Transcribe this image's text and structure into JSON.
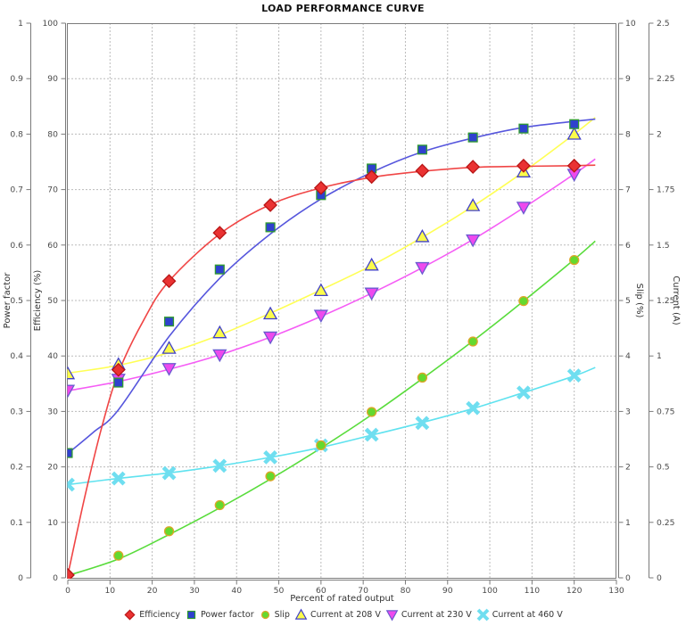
{
  "title": "LOAD PERFORMANCE CURVE",
  "chart_data": {
    "type": "scatter",
    "title": "LOAD PERFORMANCE CURVE",
    "grid": true,
    "legend_position": "bottom",
    "x_axis": {
      "label": "Percent of rated output",
      "min": 0,
      "max": 130,
      "ticks": [
        "0",
        "10",
        "20",
        "30",
        "40",
        "50",
        "60",
        "70",
        "80",
        "90",
        "100",
        "110",
        "120",
        "130"
      ]
    },
    "y_axes": [
      {
        "id": "power_factor",
        "label": "Power factor",
        "side": "left-outer",
        "min": 0,
        "max": 1,
        "ticks": [
          "0",
          "0.1",
          "0.2",
          "0.3",
          "0.4",
          "0.5",
          "0.6",
          "0.7",
          "0.8",
          "0.9",
          "1"
        ]
      },
      {
        "id": "efficiency",
        "label": "Efficiency (%)",
        "side": "left-inner",
        "min": 0,
        "max": 100,
        "ticks": [
          "0",
          "10",
          "20",
          "30",
          "40",
          "50",
          "60",
          "70",
          "80",
          "90",
          "100"
        ]
      },
      {
        "id": "slip",
        "label": "Slip (%)",
        "side": "right-inner",
        "min": 0,
        "max": 10,
        "ticks": [
          "0",
          "1",
          "2",
          "3",
          "4",
          "5",
          "6",
          "7",
          "8",
          "9",
          "10"
        ]
      },
      {
        "id": "current",
        "label": "Current (A)",
        "side": "right-outer",
        "min": 0,
        "max": 2.5,
        "ticks": [
          "0",
          "0.25",
          "0.5",
          "0.75",
          "1",
          "1.25",
          "1.5",
          "1.75",
          "2",
          "2.25",
          "2.5"
        ]
      }
    ],
    "x": [
      0,
      12,
      24,
      36,
      48,
      60,
      72,
      84,
      96,
      108,
      120
    ],
    "series": [
      {
        "name": "Efficiency",
        "axis": "efficiency",
        "marker": "diamond",
        "line_color": "#f04545",
        "fill": "#ea3232",
        "stroke": "#b81515",
        "values": [
          0.5,
          37.5,
          53.5,
          62.2,
          67.2,
          70.3,
          72.3,
          73.4,
          74.1,
          74.3,
          74.3
        ],
        "fit_x": [
          0,
          4,
          8,
          12,
          18,
          24,
          36,
          48,
          60,
          72,
          84,
          96,
          108,
          120,
          125
        ],
        "fit_y": [
          0.5,
          14.5,
          27,
          37,
          46.5,
          53.5,
          62,
          67.3,
          70.3,
          72.2,
          73.3,
          74,
          74.2,
          74.3,
          74.4
        ]
      },
      {
        "name": "Power factor",
        "axis": "power_factor",
        "marker": "square",
        "line_color": "#5656dd",
        "fill": "#2f41ce",
        "stroke": "#2f9b2f",
        "values": [
          0.225,
          0.352,
          0.462,
          0.556,
          0.632,
          0.69,
          0.738,
          0.772,
          0.794,
          0.81,
          0.818
        ],
        "fit_x": [
          0,
          6,
          12,
          24,
          36,
          48,
          60,
          72,
          84,
          96,
          108,
          120,
          125
        ],
        "fit_y": [
          0.224,
          0.262,
          0.303,
          0.435,
          0.54,
          0.62,
          0.683,
          0.731,
          0.768,
          0.793,
          0.812,
          0.823,
          0.827
        ]
      },
      {
        "name": "Slip",
        "axis": "slip",
        "marker": "circle",
        "line_color": "#59dc3c",
        "fill": "#64d92e",
        "stroke": "#dfa428",
        "values": [
          0.05,
          0.4,
          0.84,
          1.31,
          1.83,
          2.39,
          2.99,
          3.61,
          4.26,
          4.99,
          5.73
        ],
        "fit_x": [
          0,
          12,
          24,
          36,
          48,
          60,
          72,
          84,
          96,
          108,
          120,
          125
        ],
        "fit_y": [
          0.04,
          0.34,
          0.78,
          1.26,
          1.78,
          2.34,
          2.94,
          3.59,
          4.27,
          4.99,
          5.74,
          6.07
        ]
      },
      {
        "name": "Current at 208 V",
        "axis": "current",
        "marker": "triangle-up",
        "line_color": "#ffff55",
        "fill": "#fcfc4b",
        "stroke": "#4040c8",
        "values": [
          0.92,
          0.962,
          1.035,
          1.105,
          1.19,
          1.295,
          1.41,
          1.538,
          1.678,
          1.83,
          2.0
        ],
        "fit_x": [
          0,
          12,
          24,
          36,
          48,
          60,
          72,
          84,
          96,
          108,
          120,
          125
        ],
        "fit_y": [
          0.923,
          0.958,
          1.015,
          1.095,
          1.193,
          1.298,
          1.408,
          1.535,
          1.675,
          1.83,
          2.0,
          2.075
        ]
      },
      {
        "name": "Current at 230 V",
        "axis": "current",
        "marker": "triangle-down",
        "line_color": "#f55cf5",
        "fill": "#ee49ee",
        "stroke": "#6a5ad0",
        "values": [
          0.845,
          0.895,
          0.943,
          1.005,
          1.085,
          1.183,
          1.283,
          1.398,
          1.523,
          1.67,
          1.818
        ],
        "fit_x": [
          0,
          12,
          24,
          36,
          48,
          60,
          72,
          84,
          96,
          108,
          120,
          125
        ],
        "fit_y": [
          0.843,
          0.885,
          0.94,
          1.005,
          1.085,
          1.178,
          1.283,
          1.398,
          1.525,
          1.668,
          1.82,
          1.888
        ]
      },
      {
        "name": "Current at 460 V",
        "axis": "current",
        "marker": "x-cross",
        "line_color": "#5fe2ef",
        "fill": "#6fdef0",
        "stroke": "#6fdef0",
        "values": [
          0.42,
          0.448,
          0.472,
          0.505,
          0.543,
          0.597,
          0.645,
          0.698,
          0.765,
          0.835,
          0.912
        ],
        "fit_x": [
          0,
          12,
          24,
          36,
          48,
          60,
          72,
          84,
          96,
          108,
          120,
          125
        ],
        "fit_y": [
          0.42,
          0.448,
          0.473,
          0.505,
          0.543,
          0.588,
          0.643,
          0.7,
          0.763,
          0.835,
          0.91,
          0.948
        ]
      }
    ]
  },
  "colors": {
    "grid": "#bbbbbb",
    "axis": "#7a7a7a",
    "tick_text": "#4a4a4a",
    "axis_title": "#333333"
  }
}
